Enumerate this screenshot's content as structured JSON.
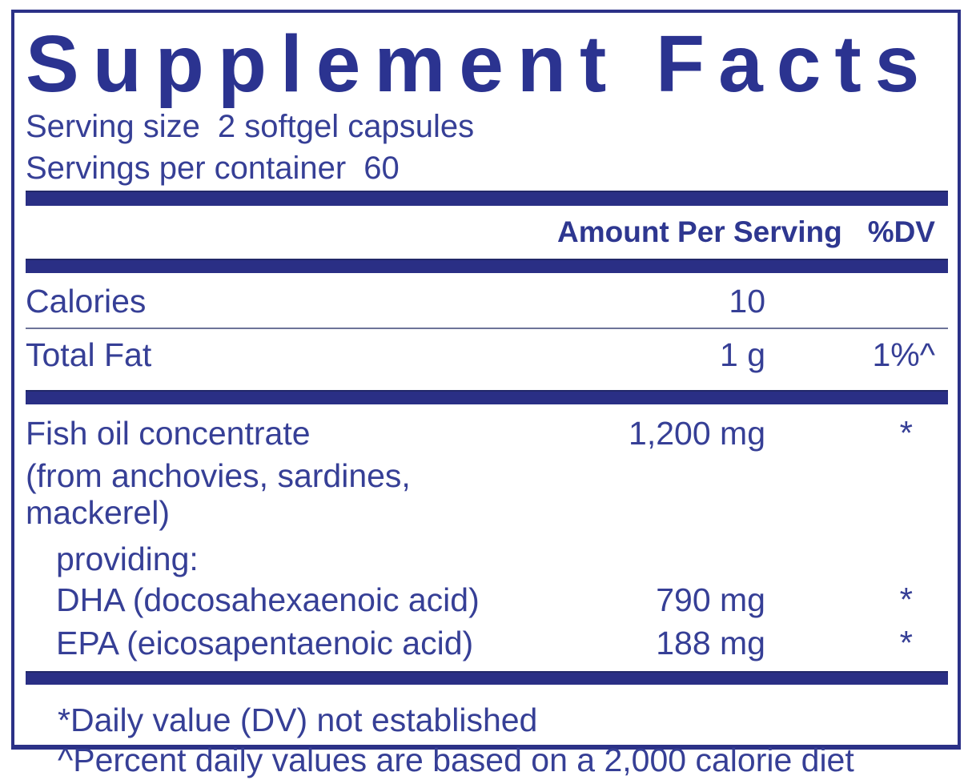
{
  "colors": {
    "navy_bar": "#2a2f85",
    "navy_title": "#2b3390",
    "body_text": "#363f96"
  },
  "title": "Supplement Facts",
  "serving": {
    "size_label": "Serving size",
    "size_value": "2 softgel capsules",
    "per_container_label": "Servings per container",
    "per_container_value": "60"
  },
  "columns": {
    "amount": "Amount Per Serving",
    "dv": "%DV"
  },
  "rows": [
    {
      "name": "Calories",
      "amount": "10",
      "dv": ""
    },
    {
      "name": "Total Fat",
      "amount": "1 g",
      "dv": "1%^"
    },
    {
      "name": "Fish oil concentrate",
      "amount": "1,200 mg",
      "dv": "*"
    },
    {
      "name": "(from anchovies, sardines, mackerel)",
      "amount": "",
      "dv": ""
    },
    {
      "name": "providing:",
      "amount": "",
      "dv": ""
    },
    {
      "name": "DHA (docosahexaenoic acid)",
      "amount": "790 mg",
      "dv": "*"
    },
    {
      "name": "EPA (eicosapentaenoic acid)",
      "amount": "188 mg",
      "dv": "*"
    }
  ],
  "footnotes": [
    "*Daily value (DV) not established",
    "^Percent daily values are based on a 2,000 calorie diet"
  ]
}
